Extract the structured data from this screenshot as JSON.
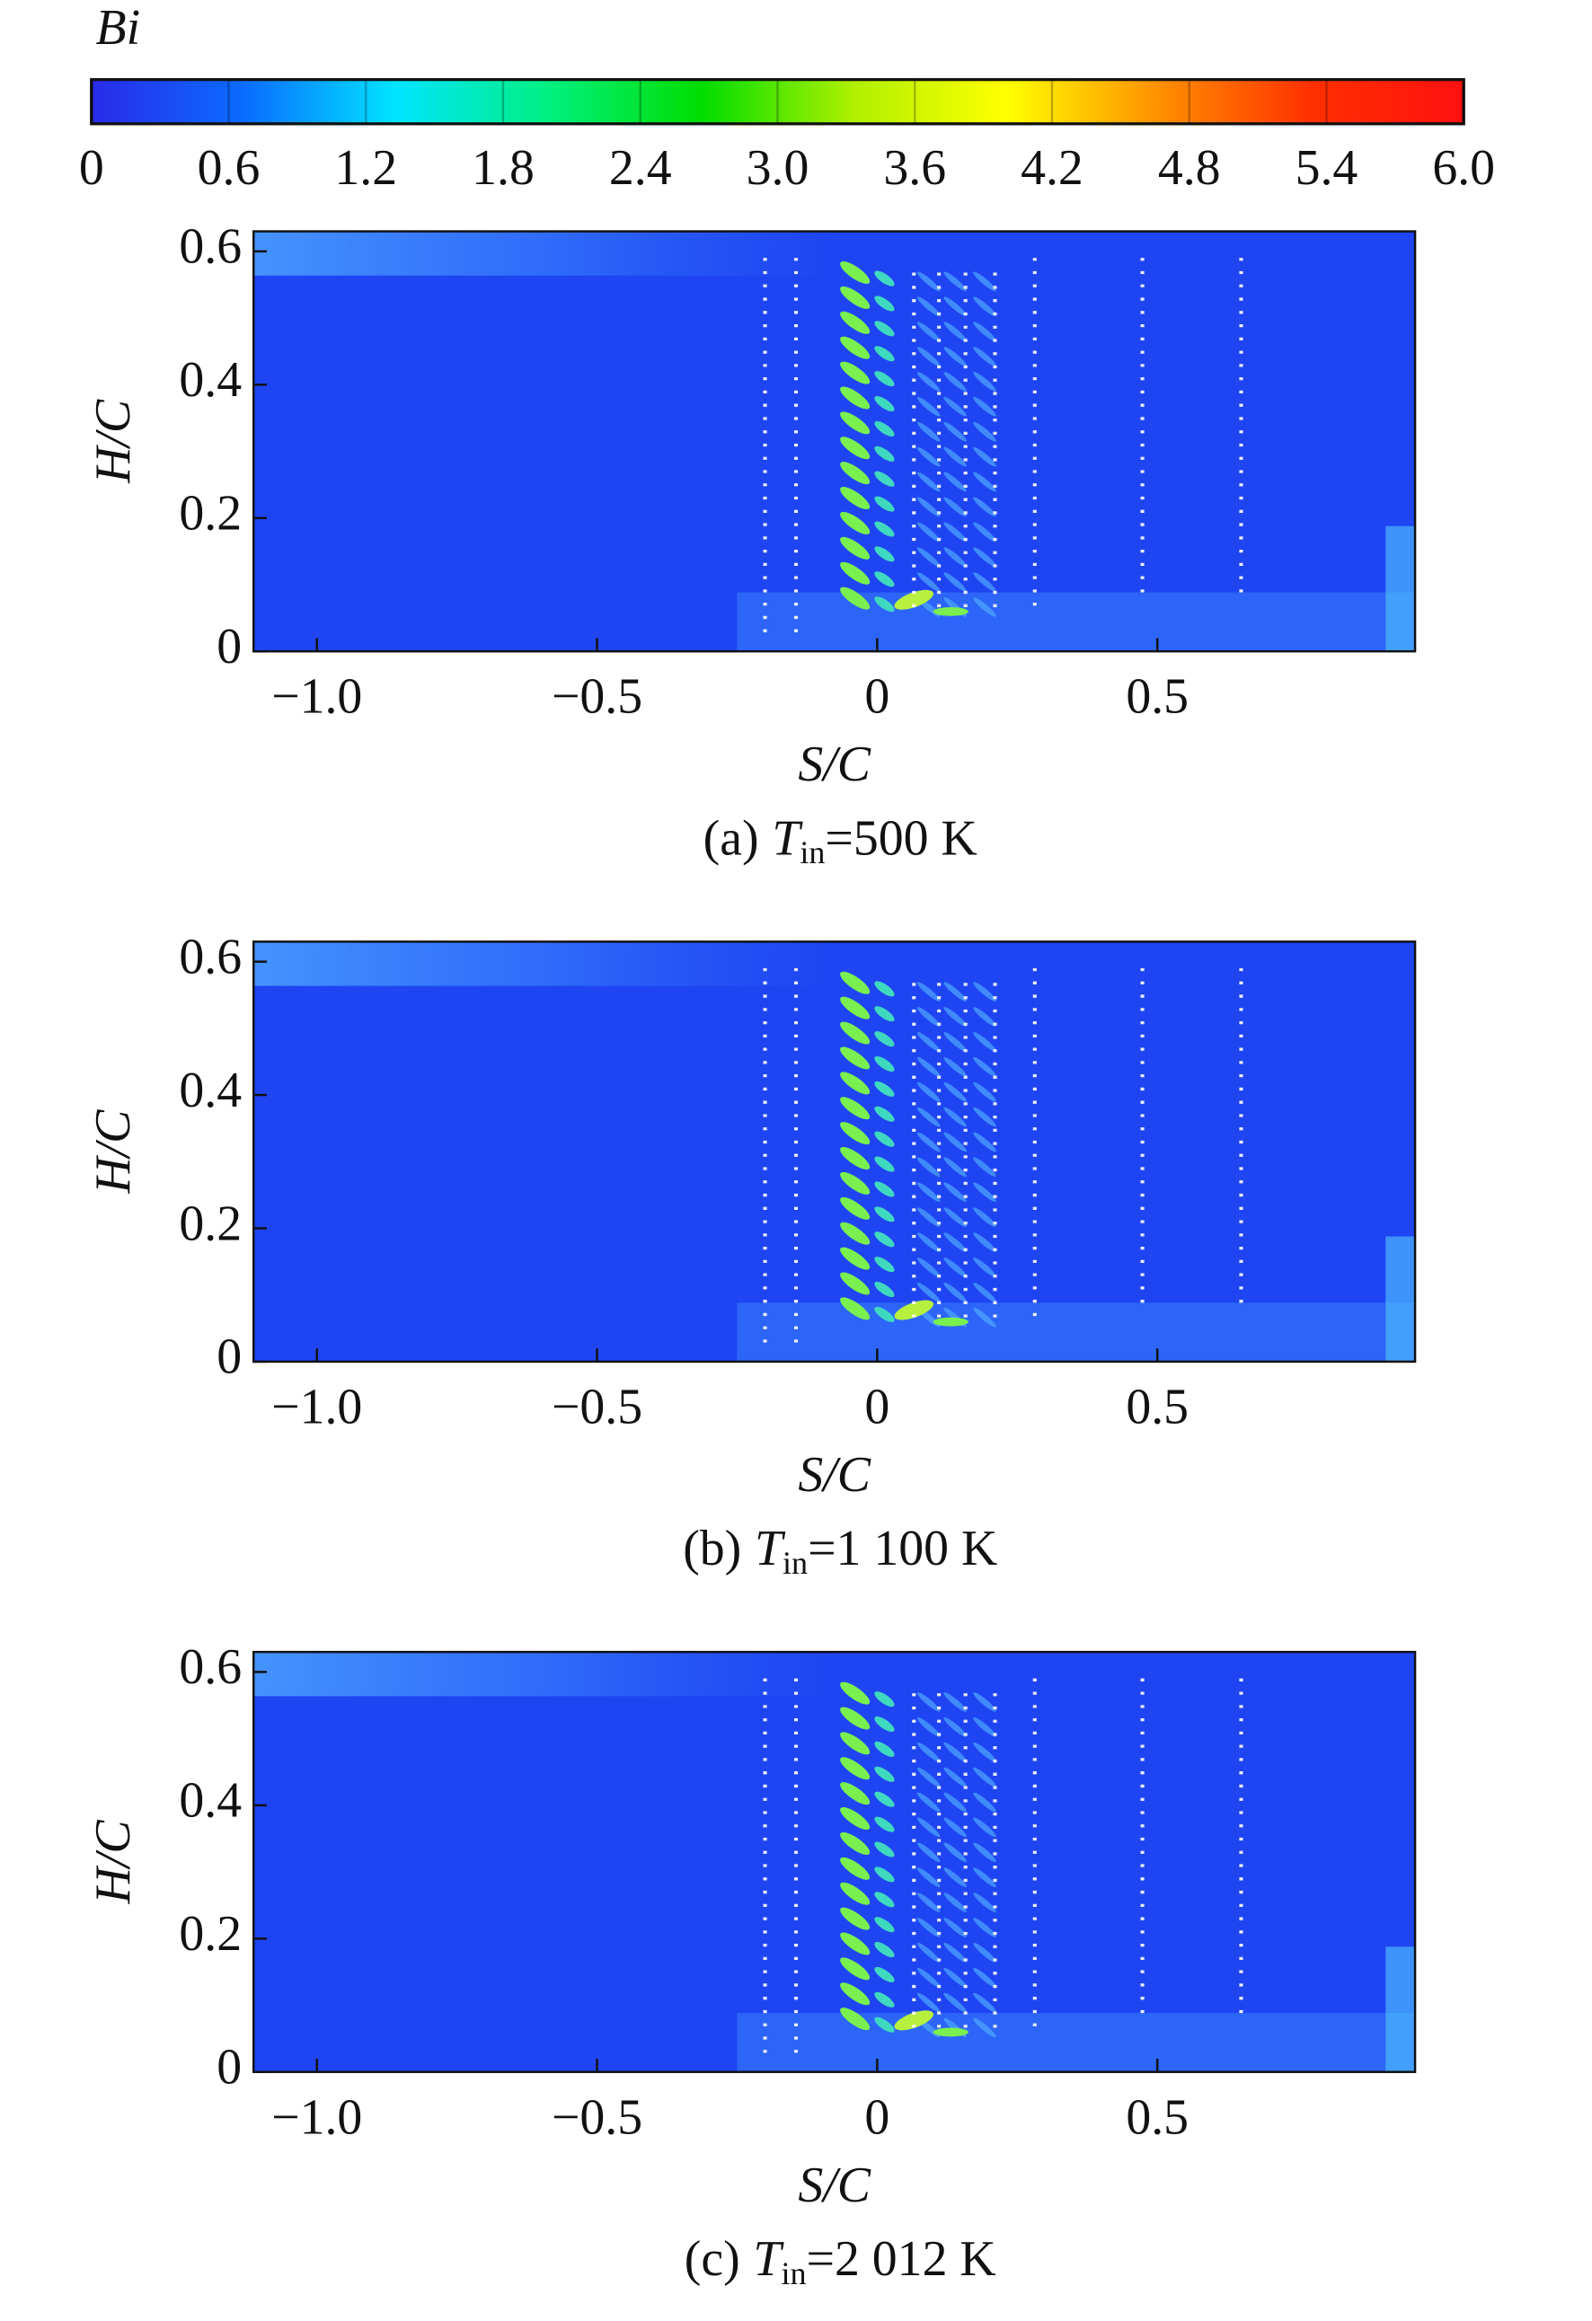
{
  "colorbar": {
    "label": "Bi",
    "lim": [
      0,
      6
    ],
    "ticks": [
      0,
      0.6,
      1.2,
      1.8,
      2.4,
      {
        "value": 3,
        "label": "3.0"
      },
      3.6,
      4.2,
      4.8,
      5.4,
      {
        "value": 6,
        "label": "6.0"
      }
    ],
    "colors": [
      "#2a2ae8",
      "#0a6cff",
      "#00e5ff",
      "#00f080",
      "#00dd00",
      "#b0f000",
      "#ffff00",
      "#ff9000",
      "#ff3000",
      "#ff1010"
    ]
  },
  "chart_data": [
    {
      "type": "contour",
      "xlabel": "S/C",
      "ylabel": "H/C",
      "xlim": [
        -1.113,
        0.96
      ],
      "ylim": [
        0,
        0.63
      ],
      "xticks": [
        {
          "value": -1,
          "label": "−1.0"
        },
        {
          "value": -0.5,
          "label": "−0.5"
        },
        0,
        0.5
      ],
      "yticks": [
        0,
        0.2,
        0.4,
        0.6
      ],
      "caption": {
        "label": "(a)",
        "symbol": "T",
        "subscript": "in",
        "value": "=500 K"
      }
    },
    {
      "type": "contour",
      "xlabel": "S/C",
      "ylabel": "H/C",
      "xlim": [
        -1.113,
        0.96
      ],
      "ylim": [
        0,
        0.63
      ],
      "xticks": [
        {
          "value": -1,
          "label": "−1.0"
        },
        {
          "value": -0.5,
          "label": "−0.5"
        },
        0,
        0.5
      ],
      "yticks": [
        0,
        0.2,
        0.4,
        0.6
      ],
      "caption": {
        "label": "(b)",
        "symbol": "T",
        "subscript": "in",
        "value": "=1 100 K"
      }
    },
    {
      "type": "contour",
      "xlabel": "S/C",
      "ylabel": "H/C",
      "xlim": [
        -1.113,
        0.96
      ],
      "ylim": [
        0,
        0.63
      ],
      "xticks": [
        {
          "value": -1,
          "label": "−1.0"
        },
        {
          "value": -0.5,
          "label": "−0.5"
        },
        0,
        0.5
      ],
      "yticks": [
        0,
        0.2,
        0.4,
        0.6
      ],
      "caption": {
        "label": "(c)",
        "symbol": "T",
        "subscript": "in",
        "value": "=2 012 K"
      }
    }
  ]
}
